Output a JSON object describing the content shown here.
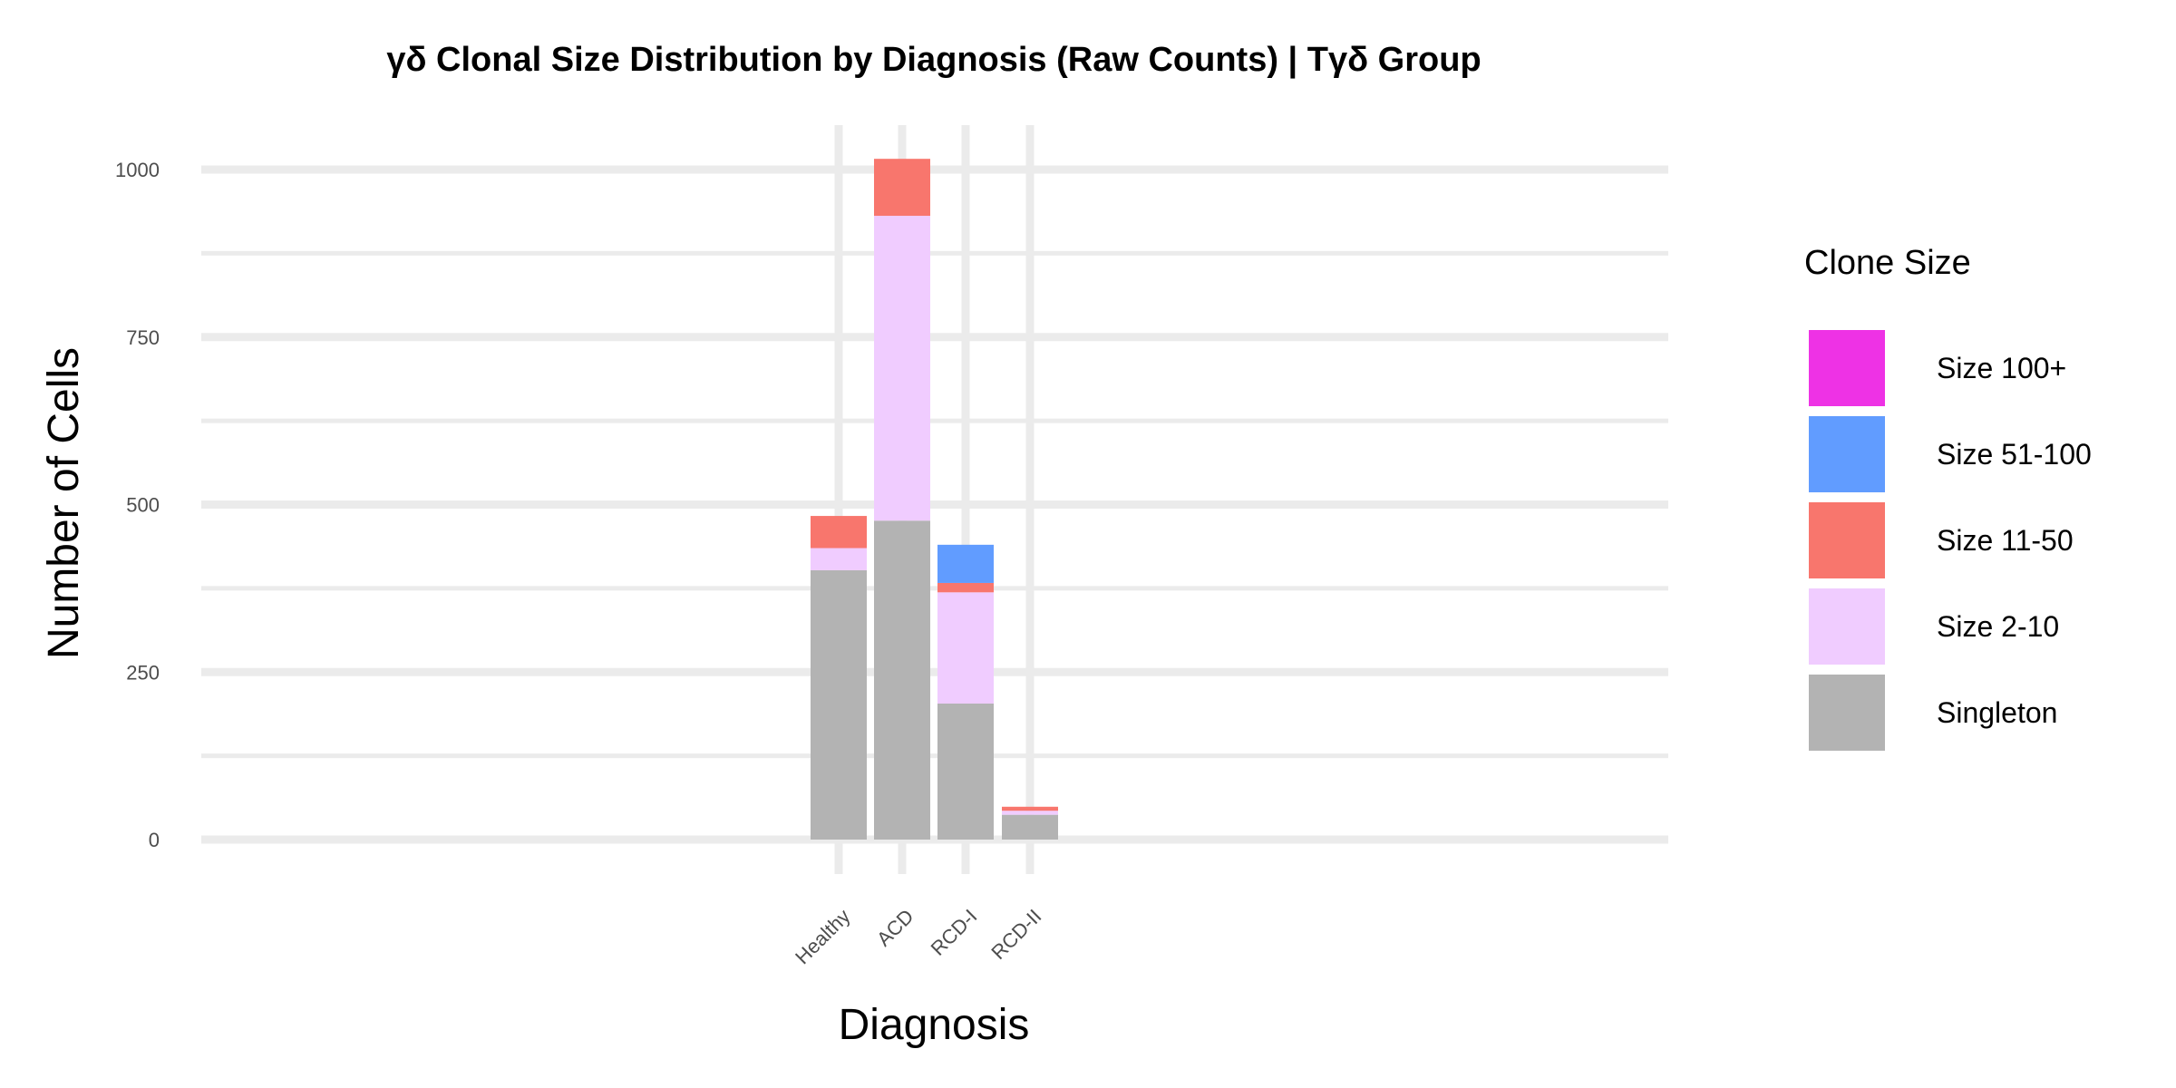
{
  "chart_data": {
    "type": "bar",
    "stacked": true,
    "title": "γδ Clonal Size Distribution by Diagnosis (Raw Counts) | Tγδ Group",
    "xlabel": "Diagnosis",
    "ylabel": "Number of Cells",
    "ylim": [
      0,
      1060
    ],
    "yticks": [
      0,
      250,
      500,
      750,
      1000
    ],
    "categories": [
      "Healthy",
      "ACD",
      "RCD-I",
      "RCD-II"
    ],
    "series": [
      {
        "name": "Singleton",
        "color": "#B3B3B3",
        "values": [
          402,
          476,
          203,
          37
        ]
      },
      {
        "name": "Size 2-10",
        "color": "#F0CCFF",
        "values": [
          33,
          455,
          166,
          6
        ]
      },
      {
        "name": "Size 11-50",
        "color": "#F8766D",
        "values": [
          48,
          85,
          14,
          6
        ]
      },
      {
        "name": "Size 51-100",
        "color": "#619CFF",
        "values": [
          0,
          0,
          57,
          0
        ]
      },
      {
        "name": "Size 100+",
        "color": "#EE32E5",
        "values": [
          0,
          0,
          0,
          0
        ]
      }
    ],
    "legend": {
      "title": "Clone Size",
      "position": "right",
      "order": [
        "Size 100+",
        "Size 51-100",
        "Size 11-50",
        "Size 2-10",
        "Singleton"
      ]
    },
    "grid": true,
    "gridColor": "#EBEBEB"
  }
}
